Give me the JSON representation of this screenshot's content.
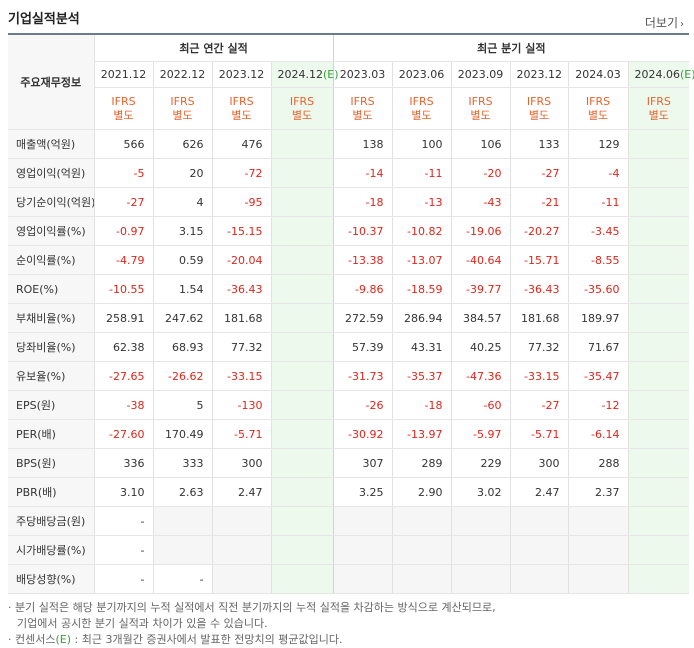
{
  "title": "기업실적분석",
  "more_label": "더보기",
  "header": {
    "row_label": "주요재무정보",
    "annual_group": "최근 연간 실적",
    "quarter_group": "최근 분기 실적",
    "annual_periods": [
      "2021.12",
      "2022.12",
      "2023.12",
      "2024.12"
    ],
    "annual_est_mark": "(E)",
    "quarter_periods": [
      "2023.03",
      "2023.06",
      "2023.09",
      "2023.12",
      "2024.03",
      "2024.06"
    ],
    "quarter_est_mark": "(E)",
    "ifrs_top": "IFRS",
    "ifrs_bottom": "별도"
  },
  "rows": [
    {
      "label": "매출액(억원)",
      "values": [
        "566",
        "626",
        "476",
        "",
        "138",
        "100",
        "106",
        "133",
        "129",
        ""
      ]
    },
    {
      "label": "영업이익(억원)",
      "values": [
        "-5",
        "20",
        "-72",
        "",
        "-14",
        "-11",
        "-20",
        "-27",
        "-4",
        ""
      ]
    },
    {
      "label": "당기순이익(억원)",
      "values": [
        "-27",
        "4",
        "-95",
        "",
        "-18",
        "-13",
        "-43",
        "-21",
        "-11",
        ""
      ]
    },
    {
      "label": "영업이익률(%)",
      "values": [
        "-0.97",
        "3.15",
        "-15.15",
        "",
        "-10.37",
        "-10.82",
        "-19.06",
        "-20.27",
        "-3.45",
        ""
      ]
    },
    {
      "label": "순이익률(%)",
      "values": [
        "-4.79",
        "0.59",
        "-20.04",
        "",
        "-13.38",
        "-13.07",
        "-40.64",
        "-15.71",
        "-8.55",
        ""
      ]
    },
    {
      "label": "ROE(%)",
      "values": [
        "-10.55",
        "1.54",
        "-36.43",
        "",
        "-9.86",
        "-18.59",
        "-39.77",
        "-36.43",
        "-35.60",
        ""
      ]
    },
    {
      "label": "부채비율(%)",
      "values": [
        "258.91",
        "247.62",
        "181.68",
        "",
        "272.59",
        "286.94",
        "384.57",
        "181.68",
        "189.97",
        ""
      ]
    },
    {
      "label": "당좌비율(%)",
      "values": [
        "62.38",
        "68.93",
        "77.32",
        "",
        "57.39",
        "43.31",
        "40.25",
        "77.32",
        "71.67",
        ""
      ]
    },
    {
      "label": "유보율(%)",
      "values": [
        "-27.65",
        "-26.62",
        "-33.15",
        "",
        "-31.73",
        "-35.37",
        "-47.36",
        "-33.15",
        "-35.47",
        ""
      ]
    },
    {
      "label": "EPS(원)",
      "values": [
        "-38",
        "5",
        "-130",
        "",
        "-26",
        "-18",
        "-60",
        "-27",
        "-12",
        ""
      ]
    },
    {
      "label": "PER(배)",
      "values": [
        "-27.60",
        "170.49",
        "-5.71",
        "",
        "-30.92",
        "-13.97",
        "-5.97",
        "-5.71",
        "-6.14",
        ""
      ]
    },
    {
      "label": "BPS(원)",
      "values": [
        "336",
        "333",
        "300",
        "",
        "307",
        "289",
        "229",
        "300",
        "288",
        ""
      ]
    },
    {
      "label": "PBR(배)",
      "values": [
        "3.10",
        "2.63",
        "2.47",
        "",
        "3.25",
        "2.90",
        "3.02",
        "2.47",
        "2.37",
        ""
      ]
    },
    {
      "label": "주당배당금(원)",
      "values": [
        "-",
        "",
        "",
        "",
        "",
        "",
        "",
        "",
        "",
        ""
      ]
    },
    {
      "label": "시가배당률(%)",
      "values": [
        "-",
        "",
        "",
        "",
        "",
        "",
        "",
        "",
        "",
        ""
      ]
    },
    {
      "label": "배당성향(%)",
      "values": [
        "-",
        "-",
        "",
        "",
        "",
        "",
        "",
        "",
        "",
        ""
      ]
    }
  ],
  "notes": {
    "line1": "· 분기 실적은 해당 분기까지의 누적 실적에서 직전 분기까지의 누적 실적을 차감하는 방식으로 계산되므로,",
    "line2": "기업에서 공시한 분기 실적과 차이가 있을 수 있습니다.",
    "line3_pre": "· 컨센서스",
    "line3_mark": "(E)",
    "line3_post": " : 최근 3개월간 증권사에서 발표한 전망치의 평균값입니다."
  }
}
